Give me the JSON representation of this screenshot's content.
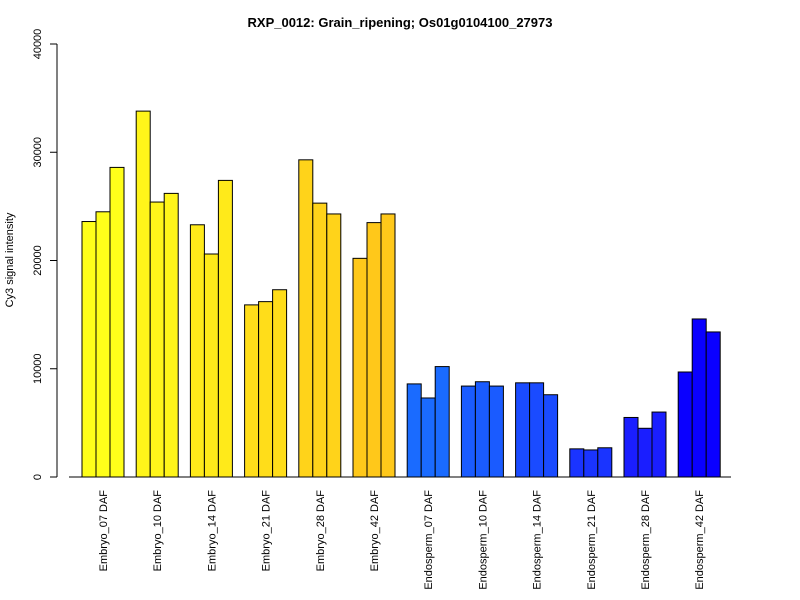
{
  "chart_data": {
    "type": "bar",
    "title": "RXP_0012: Grain_ripening; Os01g0104100_27973",
    "xlabel": "",
    "ylabel": "Cy3 signal intensity",
    "ylim": [
      0,
      40000
    ],
    "yticks": [
      0,
      10000,
      20000,
      30000,
      40000
    ],
    "grid": false,
    "legend": "none",
    "categories": [
      "Embryo_07 DAF",
      "Embryo_10 DAF",
      "Embryo_14 DAF",
      "Embryo_21 DAF",
      "Embryo_28 DAF",
      "Embryo_42 DAF",
      "Endosperm_07 DAF",
      "Endosperm_10 DAF",
      "Endosperm_14 DAF",
      "Endosperm_21 DAF",
      "Endosperm_28 DAF",
      "Endosperm_42 DAF"
    ],
    "colors": [
      "#FFFF1A",
      "#FFF51A",
      "#FFEA1A",
      "#FFDD1A",
      "#FFD31A",
      "#FFC81A",
      "#1A6BFF",
      "#1A5BFF",
      "#1A4BFF",
      "#1A34FF",
      "#1A1EFF",
      "#0A00FF"
    ],
    "series": [
      {
        "values": [
          23600,
          33800,
          23300,
          15900,
          29300,
          20200,
          8600,
          8400,
          8700,
          2600,
          5500,
          9700
        ]
      },
      {
        "values": [
          24500,
          25400,
          20600,
          16200,
          25300,
          23500,
          7300,
          8800,
          8700,
          2500,
          4500,
          14600
        ]
      },
      {
        "values": [
          28600,
          26200,
          27400,
          17300,
          24300,
          24300,
          10200,
          8400,
          7600,
          2700,
          6000,
          13400
        ]
      }
    ]
  }
}
